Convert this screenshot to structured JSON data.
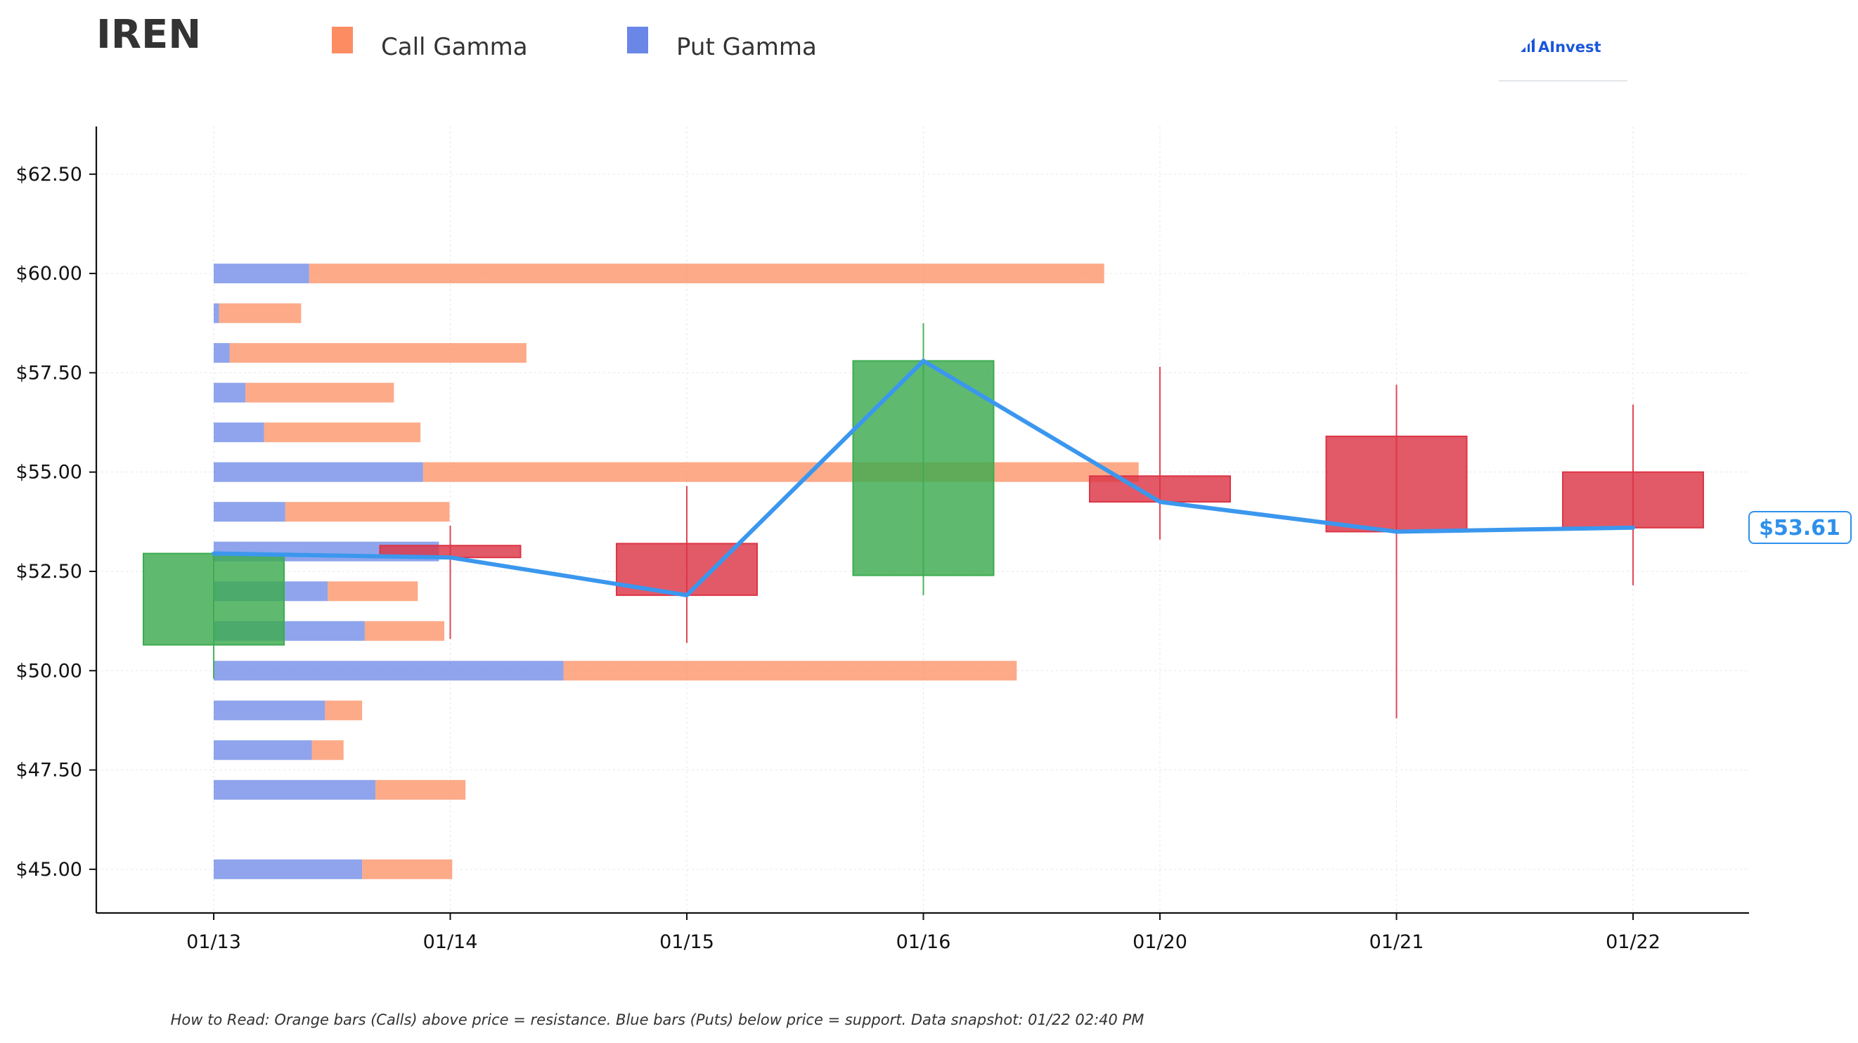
{
  "title": "IREN",
  "legend": [
    {
      "label": "Call Gamma",
      "color": "#fc8d62"
    },
    {
      "label": "Put Gamma",
      "color": "#6a86e6"
    }
  ],
  "logo": {
    "text": "AInvest",
    "color": "#1a56db"
  },
  "footnote": "How to Read: Orange bars (Calls) above price = resistance. Blue bars (Puts) below price = support. Data snapshot: 01/22 02:40 PM",
  "current_price": {
    "label": "$53.61",
    "value": 53.61,
    "color": "#2e90ea"
  },
  "colors": {
    "up": "#3cab4f",
    "down": "#dc3545",
    "call": "#fc8d62",
    "put": "#6a86e6",
    "line": "#3b97ee"
  },
  "chart_data": {
    "type": "candlestick",
    "categories": [
      "01/13",
      "01/14",
      "01/15",
      "01/16",
      "01/20",
      "01/21",
      "01/22"
    ],
    "ylim": [
      43.9,
      63.7
    ],
    "yticks": [
      45,
      47.5,
      50,
      52.5,
      55,
      57.5,
      60,
      62.5
    ],
    "ytick_labels": [
      "$45.00",
      "$47.50",
      "$50.00",
      "$52.50",
      "$55.00",
      "$57.50",
      "$60.00",
      "$62.50"
    ],
    "grid": true,
    "legend_position": "top",
    "candles": [
      {
        "date": "01/13",
        "open": 50.65,
        "high": 52.95,
        "low": 49.8,
        "close": 52.95
      },
      {
        "date": "01/14",
        "open": 53.15,
        "high": 53.65,
        "low": 50.8,
        "close": 52.85
      },
      {
        "date": "01/15",
        "open": 53.2,
        "high": 54.65,
        "low": 50.7,
        "close": 51.9
      },
      {
        "date": "01/16",
        "open": 52.4,
        "high": 58.75,
        "low": 51.9,
        "close": 57.8
      },
      {
        "date": "01/20",
        "open": 54.9,
        "high": 57.65,
        "low": 53.3,
        "close": 54.25
      },
      {
        "date": "01/21",
        "open": 55.9,
        "high": 57.2,
        "low": 48.8,
        "close": 53.5
      },
      {
        "date": "01/22",
        "open": 55.0,
        "high": 56.7,
        "low": 52.15,
        "close": 53.6
      }
    ],
    "close_line": [
      52.95,
      52.85,
      51.9,
      57.8,
      54.25,
      53.5,
      53.6
    ],
    "gamma_bars": [
      {
        "strike": 60.0,
        "put": 0.36,
        "call": 3.0
      },
      {
        "strike": 59.0,
        "put": 0.02,
        "call": 0.31
      },
      {
        "strike": 58.0,
        "put": 0.06,
        "call": 1.12
      },
      {
        "strike": 57.0,
        "put": 0.12,
        "call": 0.56
      },
      {
        "strike": 56.0,
        "put": 0.19,
        "call": 0.59
      },
      {
        "strike": 55.0,
        "put": 0.79,
        "call": 2.7
      },
      {
        "strike": 54.0,
        "put": 0.27,
        "call": 0.62
      },
      {
        "strike": 53.0,
        "put": 0.85,
        "call": 0.0
      },
      {
        "strike": 52.0,
        "put": 0.43,
        "call": 0.34
      },
      {
        "strike": 51.0,
        "put": 0.57,
        "call": 0.3
      },
      {
        "strike": 50.0,
        "put": 1.32,
        "call": 1.71
      },
      {
        "strike": 49.0,
        "put": 0.42,
        "call": 0.14
      },
      {
        "strike": 48.0,
        "put": 0.37,
        "call": 0.12
      },
      {
        "strike": 47.0,
        "put": 0.61,
        "call": 0.34
      },
      {
        "strike": 45.0,
        "put": 0.56,
        "call": 0.34
      }
    ]
  }
}
